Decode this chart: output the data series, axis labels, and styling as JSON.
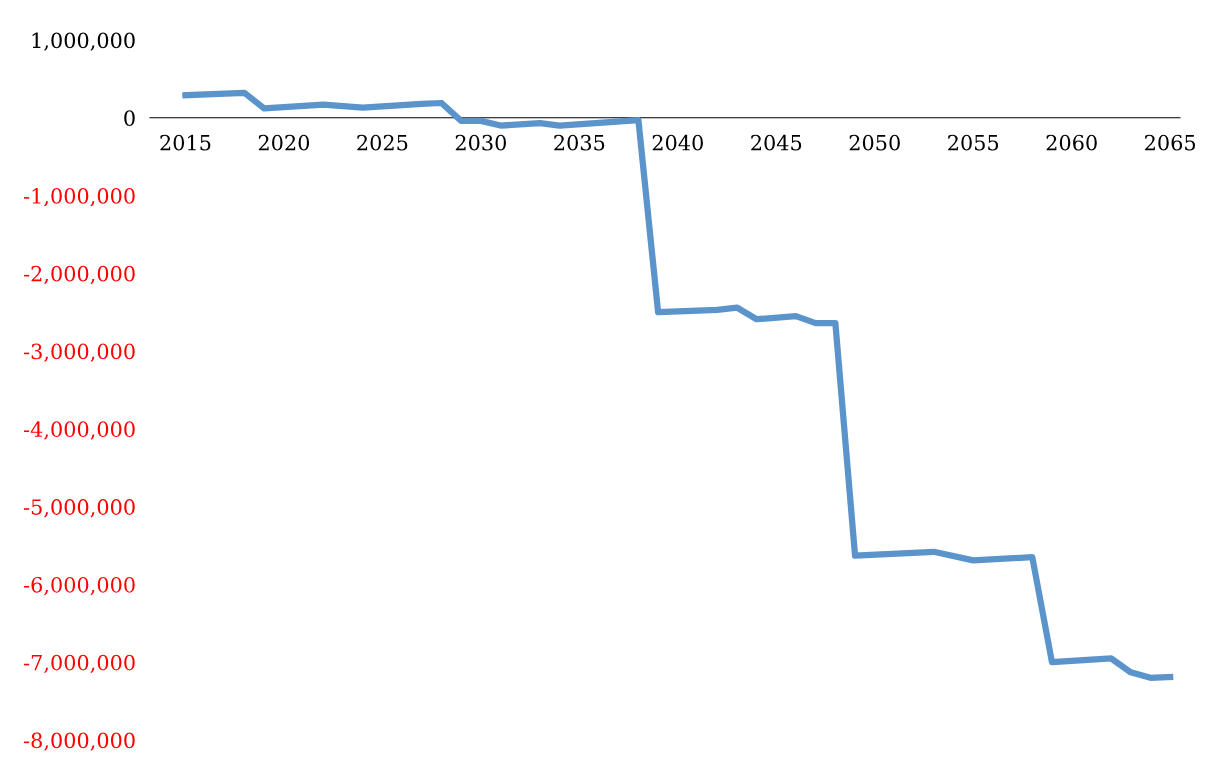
{
  "chart_data": {
    "type": "line",
    "x": [
      2015,
      2018,
      2019,
      2022,
      2024,
      2027,
      2028,
      2029,
      2030,
      2031,
      2033,
      2034,
      2038,
      2039,
      2042,
      2043,
      2044,
      2046,
      2047,
      2048,
      2049,
      2053,
      2055,
      2058,
      2059,
      2062,
      2063,
      2064,
      2065
    ],
    "series": [
      {
        "color": "#5b93cb",
        "values": [
          290000,
          320000,
          120000,
          170000,
          130000,
          180000,
          190000,
          -40000,
          -40000,
          -100000,
          -70000,
          -100000,
          -30000,
          -2500000,
          -2470000,
          -2440000,
          -2590000,
          -2550000,
          -2640000,
          -2640000,
          -5630000,
          -5580000,
          -5690000,
          -5650000,
          -7000000,
          -6950000,
          -7130000,
          -7200000,
          -7190000
        ]
      }
    ],
    "xlim": [
      2013.2,
      2065.5
    ],
    "xticks": [
      2015,
      2020,
      2025,
      2030,
      2035,
      2040,
      2045,
      2050,
      2055,
      2060,
      2065
    ],
    "ylim": [
      -8000000,
      1000000
    ],
    "yticks": [
      {
        "value": 1000000,
        "label": "1,000,000"
      },
      0,
      {
        "value": -1000000,
        "label": "-1,000,000"
      },
      {
        "value": -2000000,
        "label": "-2,000,000"
      },
      {
        "value": -3000000,
        "label": "-3,000,000"
      },
      {
        "value": -4000000,
        "label": "-4,000,000"
      },
      {
        "value": -5000000,
        "label": "-5,000,000"
      },
      {
        "value": -6000000,
        "label": "-6,000,000"
      },
      {
        "value": -7000000,
        "label": "-7,000,000"
      },
      {
        "value": -8000000,
        "label": "-8,000,000"
      }
    ],
    "marker": "none",
    "line_style": "solid"
  }
}
